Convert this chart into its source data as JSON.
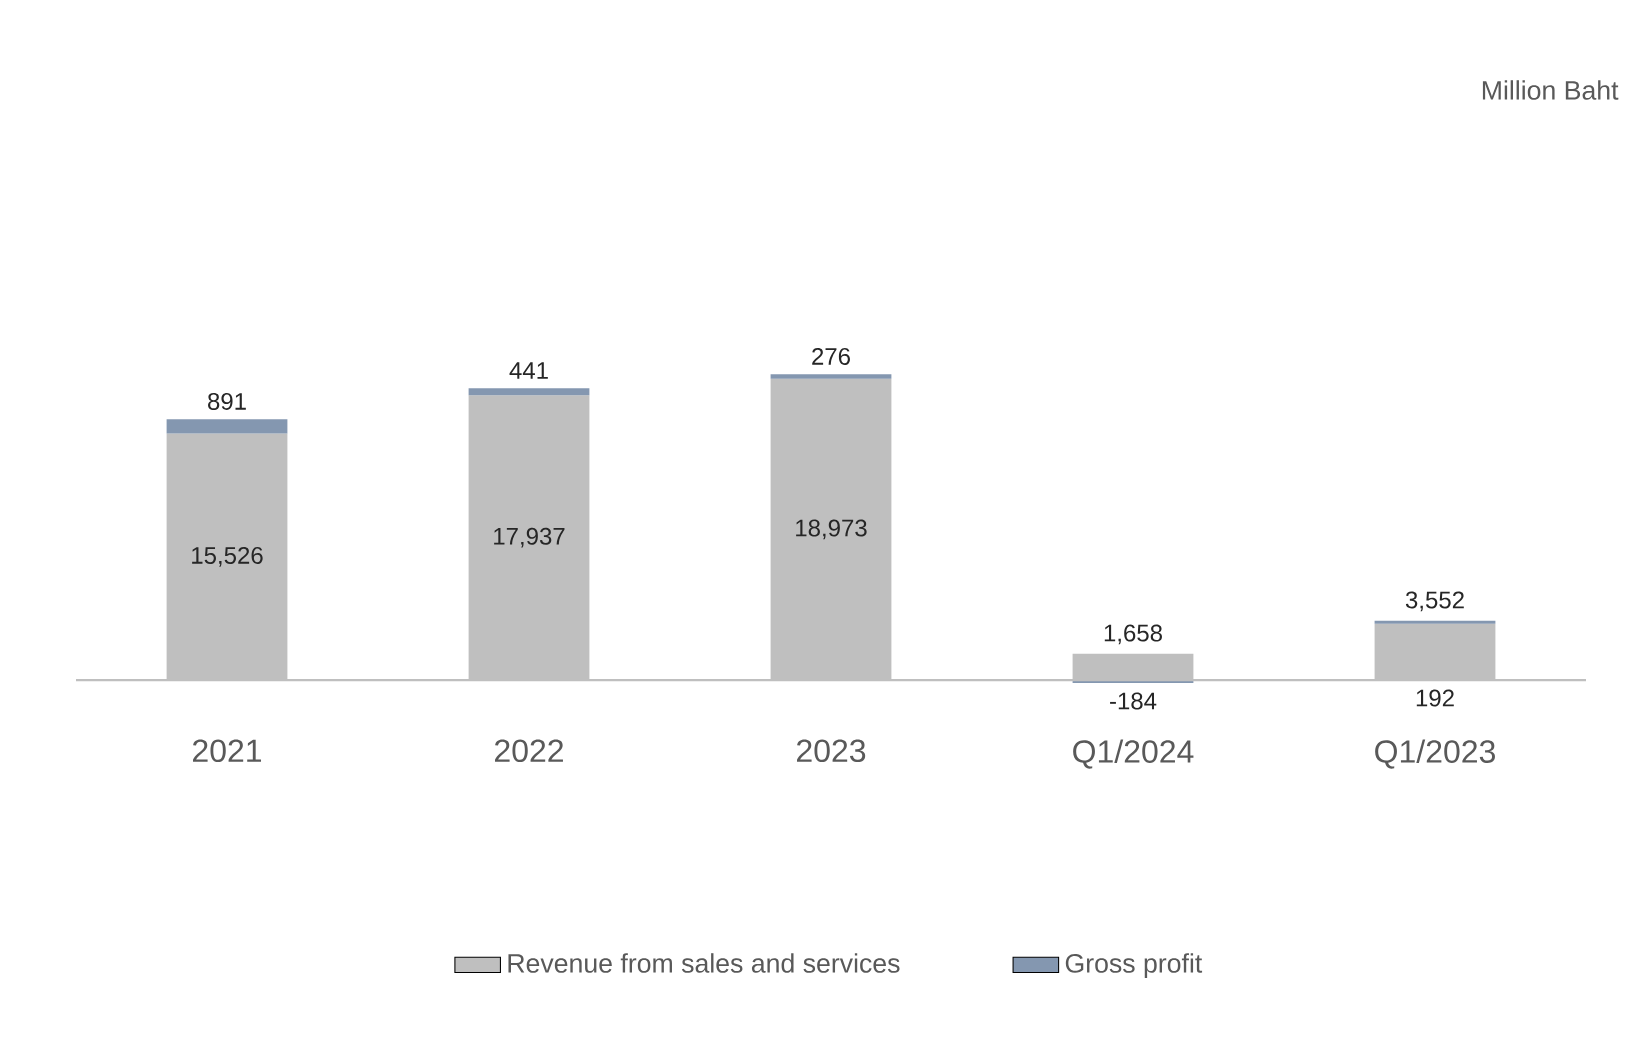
{
  "chart_data": {
    "type": "bar",
    "stacked": true,
    "categories": [
      "2021",
      "2022",
      "2023",
      "Q1/2024",
      "Q1/2023"
    ],
    "series": [
      {
        "name": "Revenue from sales and services",
        "color": "#bfbfbf",
        "values": [
          15526,
          17937,
          18973,
          1658,
          3552
        ],
        "value_labels": [
          "15,526",
          "17,937",
          "18,973",
          "1,658",
          "3,552"
        ]
      },
      {
        "name": "Gross profit",
        "color": "#8497b0",
        "values": [
          891,
          441,
          276,
          -184,
          192
        ],
        "value_labels": [
          "891",
          "441",
          "276",
          "-184",
          "192"
        ]
      }
    ],
    "legend": "bottom",
    "annotations": [
      "Million Baht"
    ]
  }
}
